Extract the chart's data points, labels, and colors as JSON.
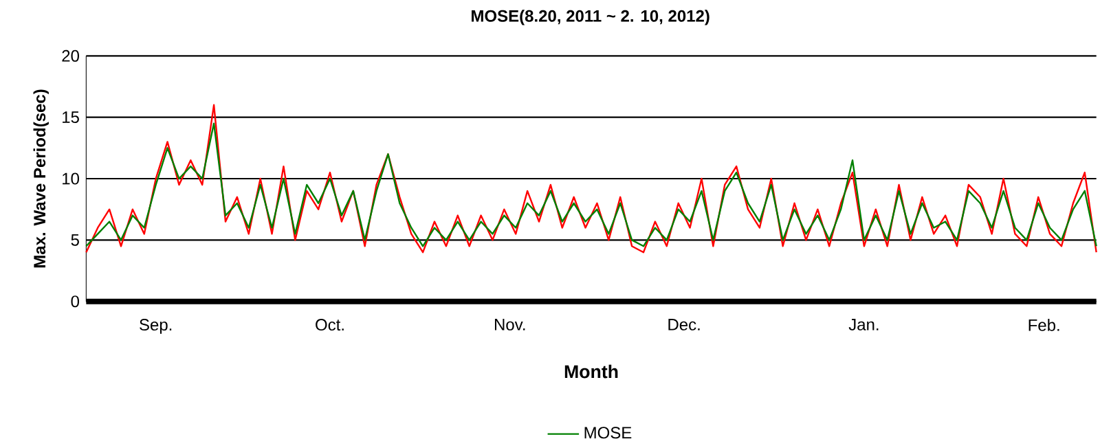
{
  "chart_data": {
    "type": "line",
    "title": "MOSE(8.20, 2011 ~ 2. 10, 2012)",
    "xlabel": "Month",
    "ylabel": "Max. Wave Period(sec)",
    "x": [
      "2011-08-20",
      "2011-08-22",
      "2011-08-24",
      "2011-08-26",
      "2011-08-28",
      "2011-08-30",
      "2011-09-01",
      "2011-09-03",
      "2011-09-05",
      "2011-09-07",
      "2011-09-09",
      "2011-09-11",
      "2011-09-13",
      "2011-09-15",
      "2011-09-17",
      "2011-09-19",
      "2011-09-21",
      "2011-09-23",
      "2011-09-25",
      "2011-09-27",
      "2011-09-29",
      "2011-10-01",
      "2011-10-03",
      "2011-10-05",
      "2011-10-07",
      "2011-10-09",
      "2011-10-11",
      "2011-10-13",
      "2011-10-15",
      "2011-10-17",
      "2011-10-19",
      "2011-10-21",
      "2011-10-23",
      "2011-10-25",
      "2011-10-27",
      "2011-10-29",
      "2011-10-31",
      "2011-11-02",
      "2011-11-04",
      "2011-11-06",
      "2011-11-08",
      "2011-11-10",
      "2011-11-12",
      "2011-11-14",
      "2011-11-16",
      "2011-11-18",
      "2011-11-20",
      "2011-11-22",
      "2011-11-24",
      "2011-11-26",
      "2011-11-28",
      "2011-11-30",
      "2011-12-02",
      "2011-12-04",
      "2011-12-06",
      "2011-12-08",
      "2011-12-10",
      "2011-12-12",
      "2011-12-14",
      "2011-12-16",
      "2011-12-18",
      "2011-12-20",
      "2011-12-22",
      "2011-12-24",
      "2011-12-26",
      "2011-12-28",
      "2011-12-30",
      "2012-01-01",
      "2012-01-03",
      "2012-01-05",
      "2012-01-07",
      "2012-01-09",
      "2012-01-11",
      "2012-01-13",
      "2012-01-15",
      "2012-01-17",
      "2012-01-19",
      "2012-01-21",
      "2012-01-23",
      "2012-01-25",
      "2012-01-27",
      "2012-01-29",
      "2012-01-31",
      "2012-02-02",
      "2012-02-04",
      "2012-02-06",
      "2012-02-08",
      "2012-02-10"
    ],
    "series": [
      {
        "color": "#ff0000",
        "values": [
          4,
          6,
          7.5,
          4.5,
          7.5,
          5.5,
          10,
          13,
          9.5,
          11.5,
          9.5,
          16,
          6.5,
          8.5,
          5.5,
          10,
          5.5,
          11,
          5,
          9,
          7.5,
          10.5,
          6.5,
          9,
          4.5,
          9.5,
          12,
          8.5,
          5.5,
          4,
          6.5,
          4.5,
          7,
          4.5,
          7,
          5,
          7.5,
          5.5,
          9,
          6.5,
          9.5,
          6,
          8.5,
          6,
          8,
          5,
          8.5,
          4.5,
          4,
          6.5,
          4.5,
          8,
          6,
          10,
          4.5,
          9.5,
          11,
          7.5,
          6,
          10,
          4.5,
          8,
          5,
          7.5,
          4.5,
          8,
          10.5,
          4.5,
          7.5,
          4.5,
          9.5,
          5,
          8.5,
          5.5,
          7,
          4.5,
          9.5,
          8.5,
          5.5,
          10,
          5.5,
          4.5,
          8.5,
          5.5,
          4.5,
          8,
          10.5,
          4
        ]
      },
      {
        "name": "MOSE",
        "color": "#008000",
        "values": [
          4.5,
          5.5,
          6.5,
          5,
          7,
          6,
          9.5,
          12.5,
          10,
          11,
          10,
          14.5,
          7,
          8,
          6,
          9.5,
          6,
          10,
          5.5,
          9.5,
          8,
          10,
          7,
          9,
          5,
          9,
          12,
          8,
          6,
          4.5,
          6,
          5,
          6.5,
          5,
          6.5,
          5.5,
          7,
          6,
          8,
          7,
          9,
          6.5,
          8,
          6.5,
          7.5,
          5.5,
          8,
          5,
          4.5,
          6,
          5,
          7.5,
          6.5,
          9,
          5,
          9,
          10.5,
          8,
          6.5,
          9.5,
          5,
          7.5,
          5.5,
          7,
          5,
          7.5,
          11.5,
          5,
          7,
          5,
          9,
          5.5,
          8,
          6,
          6.5,
          5,
          9,
          8,
          6,
          9,
          6,
          5,
          8,
          6,
          5,
          7.5,
          9,
          4.5
        ]
      }
    ],
    "xlim": [
      "2011-08-20",
      "2012-02-10"
    ],
    "xticks": [
      {
        "value": "2011-09-01",
        "label": "Sep."
      },
      {
        "value": "2011-10-01",
        "label": "Oct."
      },
      {
        "value": "2011-11-01",
        "label": "Nov."
      },
      {
        "value": "2011-12-01",
        "label": "Dec."
      },
      {
        "value": "2012-01-01",
        "label": "Jan."
      },
      {
        "value": "2012-02-01",
        "label": "Feb."
      }
    ],
    "ylim": [
      0,
      20
    ],
    "yticks": [
      0,
      5,
      10,
      15,
      20
    ],
    "grid": "y",
    "legend": "bottom",
    "marker": "none",
    "line_style": "solid"
  }
}
